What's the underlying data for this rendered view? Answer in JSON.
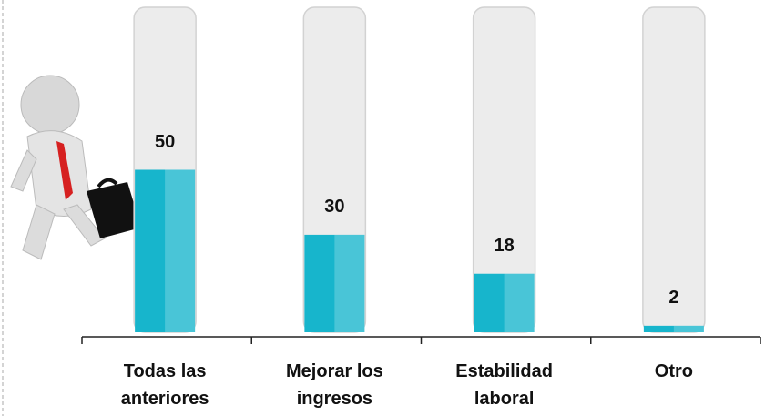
{
  "chart_data": {
    "type": "bar",
    "categories": [
      "Todas las anteriores",
      "Mejorar los ingresos",
      "Estabilidad laboral",
      "Otro"
    ],
    "values": [
      50,
      30,
      18,
      2
    ],
    "color": "#17b5cc",
    "ylim": [
      0,
      100
    ]
  }
}
